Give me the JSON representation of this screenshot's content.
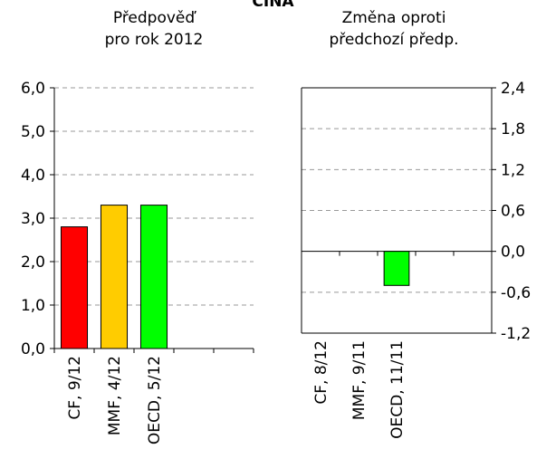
{
  "title": "ČÍNA",
  "chart_data": [
    {
      "type": "bar",
      "subtitle_lines": [
        "Předpověď",
        "pro rok 2012"
      ],
      "categories": [
        "CF, 9/12",
        "MMF, 4/12",
        "OECD, 5/12"
      ],
      "values": [
        2.8,
        3.3,
        3.3
      ],
      "bar_colors": [
        "#ff0000",
        "#ffcc00",
        "#00ff00"
      ],
      "ylim": [
        0,
        6
      ],
      "yticks": [
        "0,0",
        "1,0",
        "2,0",
        "3,0",
        "4,0",
        "5,0",
        "6,0"
      ],
      "grid": true,
      "axis_side": "left"
    },
    {
      "type": "bar",
      "subtitle_lines": [
        "Změna oproti",
        "předchozí předp."
      ],
      "categories": [
        "CF, 8/12",
        "MMF, 9/11",
        "OECD, 11/11"
      ],
      "values": [
        0,
        0,
        -0.5
      ],
      "bar_colors": [
        "#ff0000",
        "#ffcc00",
        "#00ff00"
      ],
      "ylim": [
        -1.2,
        2.4
      ],
      "yticks": [
        "-1,2",
        "-0,6",
        "0,0",
        "0,6",
        "1,2",
        "1,8",
        "2,4"
      ],
      "grid": true,
      "axis_side": "right"
    }
  ]
}
